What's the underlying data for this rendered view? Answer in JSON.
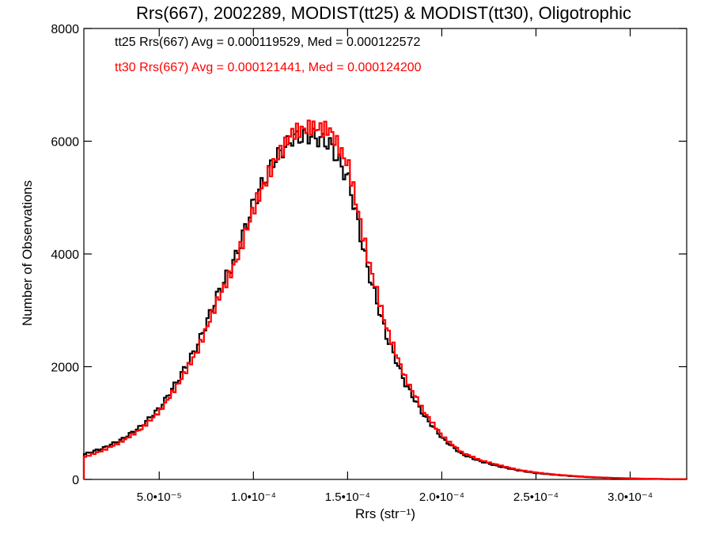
{
  "chart_data": {
    "type": "histogram-step",
    "title": "Rrs(667), 2002289, MODIST(tt25) & MODIST(tt30), Oligotrophic",
    "xlabel": "Rrs (str⁻¹)",
    "ylabel": "Number of Observations",
    "xlim": [
      1e-05,
      0.00033
    ],
    "ylim": [
      0,
      8000
    ],
    "xticks": [
      {
        "value": 5e-05,
        "label": "5.0•10⁻⁵"
      },
      {
        "value": 0.0001,
        "label": "1.0•10⁻⁴"
      },
      {
        "value": 0.00015,
        "label": "1.5•10⁻⁴"
      },
      {
        "value": 0.0002,
        "label": "2.0•10⁻⁴"
      },
      {
        "value": 0.00025,
        "label": "2.5•10⁻⁴"
      },
      {
        "value": 0.0003,
        "label": "3.0•10⁻⁴"
      }
    ],
    "yticks": [
      0,
      2000,
      4000,
      6000,
      8000
    ],
    "yticklabels": [
      "0",
      "2000",
      "4000",
      "6000",
      "8000"
    ],
    "legend_position": "top-left, inside plot",
    "grid": false,
    "series": [
      {
        "label": "tt25 Rrs(667) Avg = 0.000119529, Med = 0.000122572",
        "color": "#000000",
        "x": [
          1e-05,
          2e-05,
          3e-05,
          4e-05,
          5e-05,
          6e-05,
          7e-05,
          8e-05,
          9e-05,
          0.0001,
          0.00011,
          0.00012,
          0.00013,
          0.00014,
          0.00015,
          0.00016,
          0.00017,
          0.00018,
          0.00019,
          0.0002,
          0.00021,
          0.00022,
          0.00023,
          0.00024,
          0.00025,
          0.00026,
          0.00027,
          0.00028,
          0.00029,
          0.0003,
          0.00031,
          0.00032,
          0.00033
        ],
        "y": [
          450,
          560,
          720,
          950,
          1280,
          1800,
          2400,
          3250,
          3950,
          4950,
          5650,
          6050,
          6100,
          5950,
          5300,
          3750,
          2550,
          1700,
          1130,
          720,
          450,
          320,
          230,
          160,
          110,
          80,
          55,
          35,
          25,
          15,
          10,
          5,
          3
        ]
      },
      {
        "label": "tt30 Rrs(667) Avg = 0.000121441, Med = 0.000124200",
        "color": "#ff0000",
        "x": [
          1e-05,
          2e-05,
          3e-05,
          4e-05,
          5e-05,
          6e-05,
          7e-05,
          8e-05,
          9e-05,
          0.0001,
          0.00011,
          0.00012,
          0.00013,
          0.00014,
          0.00015,
          0.00016,
          0.00017,
          0.00018,
          0.00019,
          0.0002,
          0.00021,
          0.00022,
          0.00023,
          0.00024,
          0.00025,
          0.00026,
          0.00027,
          0.00028,
          0.00029,
          0.0003,
          0.00031,
          0.00032,
          0.00033
        ],
        "y": [
          400,
          520,
          680,
          900,
          1220,
          1720,
          2300,
          3150,
          3850,
          4850,
          5600,
          6150,
          6250,
          6200,
          5550,
          3950,
          2700,
          1800,
          1200,
          760,
          480,
          340,
          250,
          170,
          120,
          85,
          60,
          40,
          28,
          18,
          11,
          6,
          3
        ]
      }
    ]
  }
}
